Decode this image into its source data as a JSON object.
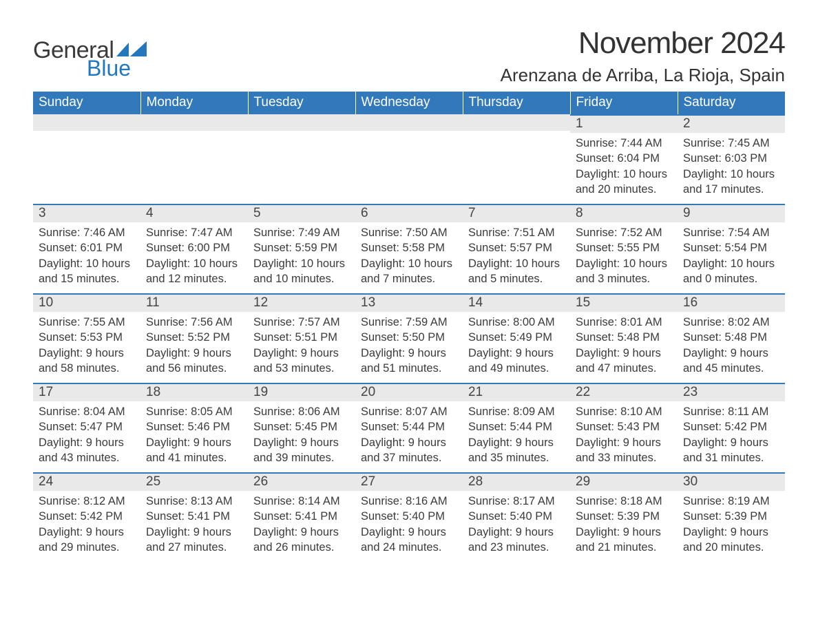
{
  "logo": {
    "word1": "General",
    "word2": "Blue"
  },
  "title": "November 2024",
  "location": "Arenzana de Arriba, La Rioja, Spain",
  "colors": {
    "headerBg": "#3279bb",
    "headerText": "#ffffff",
    "dayNumBg": "#e9e9ea",
    "borderTop": "#3279bb",
    "bodyText": "#3b3b3b"
  },
  "dayNames": [
    "Sunday",
    "Monday",
    "Tuesday",
    "Wednesday",
    "Thursday",
    "Friday",
    "Saturday"
  ],
  "cells": [
    [
      {
        "blank": true
      },
      {
        "blank": true
      },
      {
        "blank": true
      },
      {
        "blank": true
      },
      {
        "blank": true
      },
      {
        "n": "1",
        "sunrise": "7:44 AM",
        "sunset": "6:04 PM",
        "daylight": "10 hours and 20 minutes."
      },
      {
        "n": "2",
        "sunrise": "7:45 AM",
        "sunset": "6:03 PM",
        "daylight": "10 hours and 17 minutes."
      }
    ],
    [
      {
        "n": "3",
        "sunrise": "7:46 AM",
        "sunset": "6:01 PM",
        "daylight": "10 hours and 15 minutes."
      },
      {
        "n": "4",
        "sunrise": "7:47 AM",
        "sunset": "6:00 PM",
        "daylight": "10 hours and 12 minutes."
      },
      {
        "n": "5",
        "sunrise": "7:49 AM",
        "sunset": "5:59 PM",
        "daylight": "10 hours and 10 minutes."
      },
      {
        "n": "6",
        "sunrise": "7:50 AM",
        "sunset": "5:58 PM",
        "daylight": "10 hours and 7 minutes."
      },
      {
        "n": "7",
        "sunrise": "7:51 AM",
        "sunset": "5:57 PM",
        "daylight": "10 hours and 5 minutes."
      },
      {
        "n": "8",
        "sunrise": "7:52 AM",
        "sunset": "5:55 PM",
        "daylight": "10 hours and 3 minutes."
      },
      {
        "n": "9",
        "sunrise": "7:54 AM",
        "sunset": "5:54 PM",
        "daylight": "10 hours and 0 minutes."
      }
    ],
    [
      {
        "n": "10",
        "sunrise": "7:55 AM",
        "sunset": "5:53 PM",
        "daylight": "9 hours and 58 minutes."
      },
      {
        "n": "11",
        "sunrise": "7:56 AM",
        "sunset": "5:52 PM",
        "daylight": "9 hours and 56 minutes."
      },
      {
        "n": "12",
        "sunrise": "7:57 AM",
        "sunset": "5:51 PM",
        "daylight": "9 hours and 53 minutes."
      },
      {
        "n": "13",
        "sunrise": "7:59 AM",
        "sunset": "5:50 PM",
        "daylight": "9 hours and 51 minutes."
      },
      {
        "n": "14",
        "sunrise": "8:00 AM",
        "sunset": "5:49 PM",
        "daylight": "9 hours and 49 minutes."
      },
      {
        "n": "15",
        "sunrise": "8:01 AM",
        "sunset": "5:48 PM",
        "daylight": "9 hours and 47 minutes."
      },
      {
        "n": "16",
        "sunrise": "8:02 AM",
        "sunset": "5:48 PM",
        "daylight": "9 hours and 45 minutes."
      }
    ],
    [
      {
        "n": "17",
        "sunrise": "8:04 AM",
        "sunset": "5:47 PM",
        "daylight": "9 hours and 43 minutes."
      },
      {
        "n": "18",
        "sunrise": "8:05 AM",
        "sunset": "5:46 PM",
        "daylight": "9 hours and 41 minutes."
      },
      {
        "n": "19",
        "sunrise": "8:06 AM",
        "sunset": "5:45 PM",
        "daylight": "9 hours and 39 minutes."
      },
      {
        "n": "20",
        "sunrise": "8:07 AM",
        "sunset": "5:44 PM",
        "daylight": "9 hours and 37 minutes."
      },
      {
        "n": "21",
        "sunrise": "8:09 AM",
        "sunset": "5:44 PM",
        "daylight": "9 hours and 35 minutes."
      },
      {
        "n": "22",
        "sunrise": "8:10 AM",
        "sunset": "5:43 PM",
        "daylight": "9 hours and 33 minutes."
      },
      {
        "n": "23",
        "sunrise": "8:11 AM",
        "sunset": "5:42 PM",
        "daylight": "9 hours and 31 minutes."
      }
    ],
    [
      {
        "n": "24",
        "sunrise": "8:12 AM",
        "sunset": "5:42 PM",
        "daylight": "9 hours and 29 minutes."
      },
      {
        "n": "25",
        "sunrise": "8:13 AM",
        "sunset": "5:41 PM",
        "daylight": "9 hours and 27 minutes."
      },
      {
        "n": "26",
        "sunrise": "8:14 AM",
        "sunset": "5:41 PM",
        "daylight": "9 hours and 26 minutes."
      },
      {
        "n": "27",
        "sunrise": "8:16 AM",
        "sunset": "5:40 PM",
        "daylight": "9 hours and 24 minutes."
      },
      {
        "n": "28",
        "sunrise": "8:17 AM",
        "sunset": "5:40 PM",
        "daylight": "9 hours and 23 minutes."
      },
      {
        "n": "29",
        "sunrise": "8:18 AM",
        "sunset": "5:39 PM",
        "daylight": "9 hours and 21 minutes."
      },
      {
        "n": "30",
        "sunrise": "8:19 AM",
        "sunset": "5:39 PM",
        "daylight": "9 hours and 20 minutes."
      }
    ]
  ],
  "labels": {
    "sunrise": "Sunrise: ",
    "sunset": "Sunset: ",
    "daylight": "Daylight: "
  }
}
